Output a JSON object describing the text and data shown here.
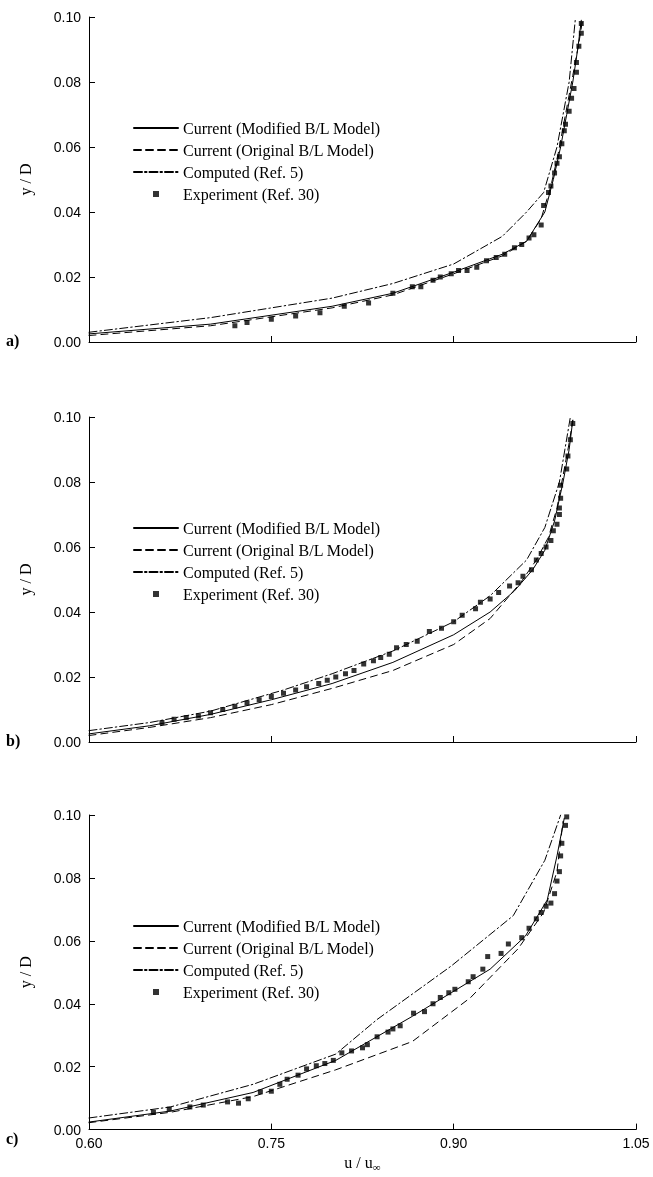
{
  "chart_data": [
    {
      "type": "line",
      "ylabel": "y / D",
      "annotations": [
        "a)"
      ],
      "xlim": [
        0.6,
        1.05
      ],
      "ylim": [
        0,
        0.1
      ],
      "xticks": [
        {
          "value": 0.6,
          "label": null
        },
        {
          "value": 0.75,
          "label": null
        },
        {
          "value": 0.9,
          "label": null
        },
        {
          "value": 1.05,
          "label": null
        }
      ],
      "yticks": [
        {
          "value": 0,
          "label": "0.00"
        },
        {
          "value": 0.02,
          "label": "0.02"
        },
        {
          "value": 0.04,
          "label": "0.04"
        },
        {
          "value": 0.06,
          "label": "0.06"
        },
        {
          "value": 0.08,
          "label": "0.08"
        },
        {
          "value": 0.1,
          "label": "0.10"
        }
      ],
      "tick_labels": "y",
      "grid": false,
      "legend": "left",
      "series": [
        {
          "name": "Current (Modified B/L Model)",
          "color": "#000000",
          "line_style": "solid",
          "marker": "none",
          "x": [
            0.6,
            0.7,
            0.8,
            0.85,
            0.9,
            0.94,
            0.96,
            0.975,
            0.982,
            0.988,
            0.993,
            0.998,
            1.002,
            1.005
          ],
          "values": [
            0.0025,
            0.0055,
            0.011,
            0.015,
            0.0215,
            0.027,
            0.031,
            0.04,
            0.05,
            0.06,
            0.07,
            0.08,
            0.09,
            0.099
          ]
        },
        {
          "name": "Current (Original B/L Model)",
          "color": "#000000",
          "line_style": "dashed",
          "marker": "none",
          "x": [
            0.6,
            0.7,
            0.8,
            0.85,
            0.9,
            0.94,
            0.96,
            0.972,
            0.98,
            0.986,
            0.992,
            0.998,
            1.003,
            1.006
          ],
          "values": [
            0.002,
            0.005,
            0.0105,
            0.0145,
            0.021,
            0.0265,
            0.031,
            0.038,
            0.048,
            0.058,
            0.07,
            0.082,
            0.092,
            0.099
          ]
        },
        {
          "name": "Computed (Ref. 5)",
          "color": "#000000",
          "line_style": "dashdot",
          "marker": "none",
          "x": [
            0.6,
            0.7,
            0.8,
            0.85,
            0.9,
            0.94,
            0.96,
            0.974,
            0.985,
            0.995,
            1.0
          ],
          "values": [
            0.003,
            0.0075,
            0.0135,
            0.018,
            0.024,
            0.0325,
            0.04,
            0.046,
            0.06,
            0.08,
            0.099
          ]
        },
        {
          "name": "Experiment (Ref. 30)",
          "type": "scatter",
          "color": "#000000",
          "marker": "square",
          "x": [
            0.72,
            0.73,
            0.75,
            0.77,
            0.79,
            0.81,
            0.83,
            0.85,
            0.866,
            0.873,
            0.883,
            0.889,
            0.898,
            0.904,
            0.911,
            0.919,
            0.927,
            0.935,
            0.942,
            0.95,
            0.956,
            0.962,
            0.966,
            0.972,
            0.974,
            0.978,
            0.98,
            0.983,
            0.985,
            0.987,
            0.989,
            0.991,
            0.992,
            0.995,
            0.997,
            0.999,
            1.001,
            1.001,
            1.003,
            1.005,
            1.005
          ],
          "values": [
            0.005,
            0.006,
            0.007,
            0.008,
            0.009,
            0.011,
            0.012,
            0.015,
            0.017,
            0.017,
            0.019,
            0.02,
            0.021,
            0.022,
            0.022,
            0.023,
            0.025,
            0.026,
            0.027,
            0.029,
            0.03,
            0.032,
            0.033,
            0.036,
            0.042,
            0.046,
            0.048,
            0.052,
            0.055,
            0.057,
            0.061,
            0.065,
            0.067,
            0.071,
            0.075,
            0.078,
            0.083,
            0.086,
            0.091,
            0.095,
            0.098
          ]
        }
      ]
    },
    {
      "type": "line",
      "ylabel": "y / D",
      "annotations": [
        "b)"
      ],
      "xlim": [
        0.6,
        1.05
      ],
      "ylim": [
        0,
        0.1
      ],
      "xticks": [
        {
          "value": 0.6,
          "label": null
        },
        {
          "value": 0.75,
          "label": null
        },
        {
          "value": 0.9,
          "label": null
        },
        {
          "value": 1.05,
          "label": null
        }
      ],
      "yticks": [
        {
          "value": 0,
          "label": "0.00"
        },
        {
          "value": 0.02,
          "label": "0.02"
        },
        {
          "value": 0.04,
          "label": "0.04"
        },
        {
          "value": 0.06,
          "label": "0.06"
        },
        {
          "value": 0.08,
          "label": "0.08"
        },
        {
          "value": 0.1,
          "label": "0.10"
        }
      ],
      "tick_labels": "y",
      "grid": false,
      "legend": "left",
      "series": [
        {
          "name": "Current (Modified B/L Model)",
          "color": "#000000",
          "line_style": "solid",
          "marker": "none",
          "x": [
            0.6,
            0.65,
            0.7,
            0.75,
            0.8,
            0.85,
            0.9,
            0.93,
            0.95,
            0.965,
            0.975,
            0.983,
            0.99,
            0.995,
            0.998
          ],
          "values": [
            0.0025,
            0.005,
            0.0085,
            0.013,
            0.018,
            0.0245,
            0.033,
            0.04,
            0.0465,
            0.053,
            0.059,
            0.068,
            0.08,
            0.09,
            0.099
          ]
        },
        {
          "name": "Current (Original B/L Model)",
          "color": "#000000",
          "line_style": "dashed",
          "marker": "none",
          "x": [
            0.6,
            0.65,
            0.7,
            0.75,
            0.8,
            0.85,
            0.9,
            0.93,
            0.955,
            0.968,
            0.978,
            0.985,
            0.99,
            0.995,
            0.998
          ],
          "values": [
            0.002,
            0.0045,
            0.0075,
            0.0115,
            0.0165,
            0.022,
            0.03,
            0.038,
            0.049,
            0.056,
            0.063,
            0.072,
            0.082,
            0.092,
            0.099
          ]
        },
        {
          "name": "Computed (Ref. 5)",
          "color": "#000000",
          "line_style": "dashdot",
          "marker": "none",
          "x": [
            0.6,
            0.65,
            0.7,
            0.76,
            0.8,
            0.85,
            0.9,
            0.93,
            0.96,
            0.975,
            0.987,
            0.996
          ],
          "values": [
            0.0035,
            0.006,
            0.0095,
            0.016,
            0.021,
            0.028,
            0.037,
            0.045,
            0.056,
            0.066,
            0.08,
            0.1
          ]
        },
        {
          "name": "Experiment (Ref. 30)",
          "type": "scatter",
          "color": "#000000",
          "marker": "square",
          "x": [
            0.66,
            0.67,
            0.68,
            0.69,
            0.7,
            0.71,
            0.72,
            0.73,
            0.74,
            0.75,
            0.76,
            0.77,
            0.779,
            0.789,
            0.796,
            0.803,
            0.811,
            0.818,
            0.826,
            0.834,
            0.84,
            0.847,
            0.853,
            0.861,
            0.87,
            0.88,
            0.89,
            0.9,
            0.907,
            0.918,
            0.922,
            0.93,
            0.937,
            0.946,
            0.953,
            0.957,
            0.964,
            0.968,
            0.972,
            0.976,
            0.98,
            0.982,
            0.985,
            0.987,
            0.987,
            0.988,
            0.988,
            0.993,
            0.994,
            0.996,
            0.998
          ],
          "values": [
            0.006,
            0.007,
            0.0075,
            0.008,
            0.009,
            0.01,
            0.011,
            0.012,
            0.013,
            0.014,
            0.015,
            0.016,
            0.017,
            0.018,
            0.019,
            0.02,
            0.021,
            0.022,
            0.024,
            0.025,
            0.026,
            0.027,
            0.029,
            0.03,
            0.031,
            0.034,
            0.035,
            0.037,
            0.039,
            0.041,
            0.043,
            0.044,
            0.046,
            0.048,
            0.049,
            0.051,
            0.053,
            0.056,
            0.058,
            0.06,
            0.062,
            0.065,
            0.067,
            0.07,
            0.072,
            0.075,
            0.079,
            0.084,
            0.088,
            0.093,
            0.098
          ]
        }
      ]
    },
    {
      "type": "line",
      "xlabel": "u / u$_{∞}$",
      "ylabel": "y / D",
      "annotations": [
        "c)"
      ],
      "xlim": [
        0.6,
        1.05
      ],
      "ylim": [
        0,
        0.1
      ],
      "xticks": [
        {
          "value": 0.6,
          "label": "0.60"
        },
        {
          "value": 0.75,
          "label": "0.75"
        },
        {
          "value": 0.9,
          "label": "0.90"
        },
        {
          "value": 1.05,
          "label": "1.05"
        }
      ],
      "yticks": [
        {
          "value": 0,
          "label": "0.00"
        },
        {
          "value": 0.02,
          "label": "0.02"
        },
        {
          "value": 0.04,
          "label": "0.04"
        },
        {
          "value": 0.06,
          "label": "0.06"
        },
        {
          "value": 0.08,
          "label": "0.08"
        },
        {
          "value": 0.1,
          "label": "0.10"
        }
      ],
      "grid": false,
      "legend": "left",
      "series": [
        {
          "name": "Current (Modified B/L Model)",
          "color": "#000000",
          "line_style": "solid",
          "marker": "none",
          "x": [
            0.6,
            0.667,
            0.735,
            0.803,
            0.866,
            0.898,
            0.93,
            0.959,
            0.977,
            0.985,
            0.991
          ],
          "values": [
            0.0024,
            0.0059,
            0.0118,
            0.022,
            0.036,
            0.0435,
            0.051,
            0.0615,
            0.073,
            0.087,
            0.099
          ]
        },
        {
          "name": "Current (Original B/L Model)",
          "color": "#000000",
          "line_style": "dashed",
          "marker": "none",
          "x": [
            0.6,
            0.667,
            0.735,
            0.803,
            0.866,
            0.914,
            0.953,
            0.974,
            0.985,
            0.99
          ],
          "values": [
            0.0022,
            0.0055,
            0.0105,
            0.019,
            0.028,
            0.042,
            0.0575,
            0.069,
            0.082,
            0.098
          ]
        },
        {
          "name": "Computed (Ref. 5)",
          "color": "#000000",
          "line_style": "dashdot",
          "marker": "none",
          "x": [
            0.6,
            0.667,
            0.735,
            0.803,
            0.837,
            0.898,
            0.949,
            0.975,
            0.988
          ],
          "values": [
            0.0037,
            0.0072,
            0.0144,
            0.024,
            0.035,
            0.052,
            0.068,
            0.0856,
            0.1
          ]
        },
        {
          "name": "Experiment (Ref. 30)",
          "type": "scatter",
          "color": "#000000",
          "marker": "square",
          "x": [
            0.653,
            0.666,
            0.683,
            0.694,
            0.714,
            0.723,
            0.731,
            0.741,
            0.75,
            0.757,
            0.763,
            0.772,
            0.779,
            0.787,
            0.794,
            0.801,
            0.808,
            0.816,
            0.825,
            0.829,
            0.837,
            0.846,
            0.85,
            0.856,
            0.867,
            0.876,
            0.883,
            0.889,
            0.896,
            0.901,
            0.912,
            0.916,
            0.924,
            0.928,
            0.939,
            0.945,
            0.956,
            0.962,
            0.968,
            0.972,
            0.976,
            0.98,
            0.983,
            0.985,
            0.987,
            0.988,
            0.989,
            0.992,
            0.993
          ],
          "values": [
            0.0055,
            0.0065,
            0.0072,
            0.0078,
            0.0088,
            0.0084,
            0.0098,
            0.012,
            0.0122,
            0.0144,
            0.016,
            0.0173,
            0.0193,
            0.0203,
            0.021,
            0.022,
            0.0244,
            0.025,
            0.026,
            0.027,
            0.0295,
            0.031,
            0.032,
            0.033,
            0.037,
            0.0375,
            0.04,
            0.042,
            0.0435,
            0.0446,
            0.047,
            0.0486,
            0.051,
            0.055,
            0.056,
            0.059,
            0.061,
            0.064,
            0.067,
            0.069,
            0.071,
            0.072,
            0.075,
            0.079,
            0.082,
            0.087,
            0.091,
            0.0967,
            0.0994
          ]
        }
      ]
    }
  ]
}
